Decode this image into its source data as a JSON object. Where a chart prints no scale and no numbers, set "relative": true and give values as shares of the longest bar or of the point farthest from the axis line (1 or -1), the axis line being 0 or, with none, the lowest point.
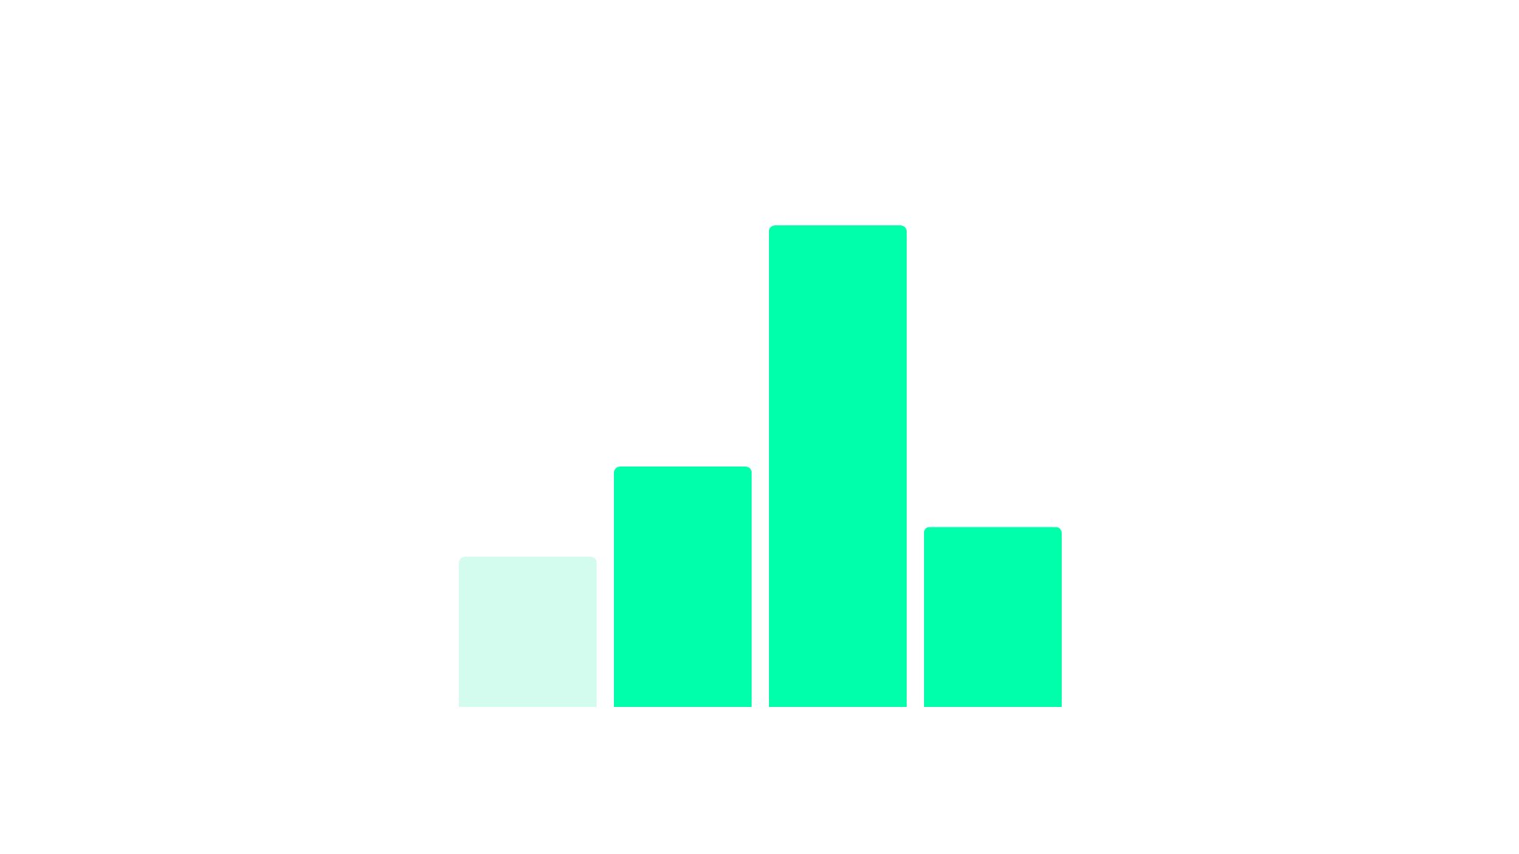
{
  "chart_data": {
    "type": "bar",
    "categories": [
      null,
      null,
      null,
      null
    ],
    "values": [
      0.312,
      0.499,
      1,
      0.374
    ],
    "colors": [
      "#d4fcee",
      "#00ffaa",
      "#00ffaa",
      "#00ffaa"
    ],
    "relative": true,
    "legend": false
  }
}
